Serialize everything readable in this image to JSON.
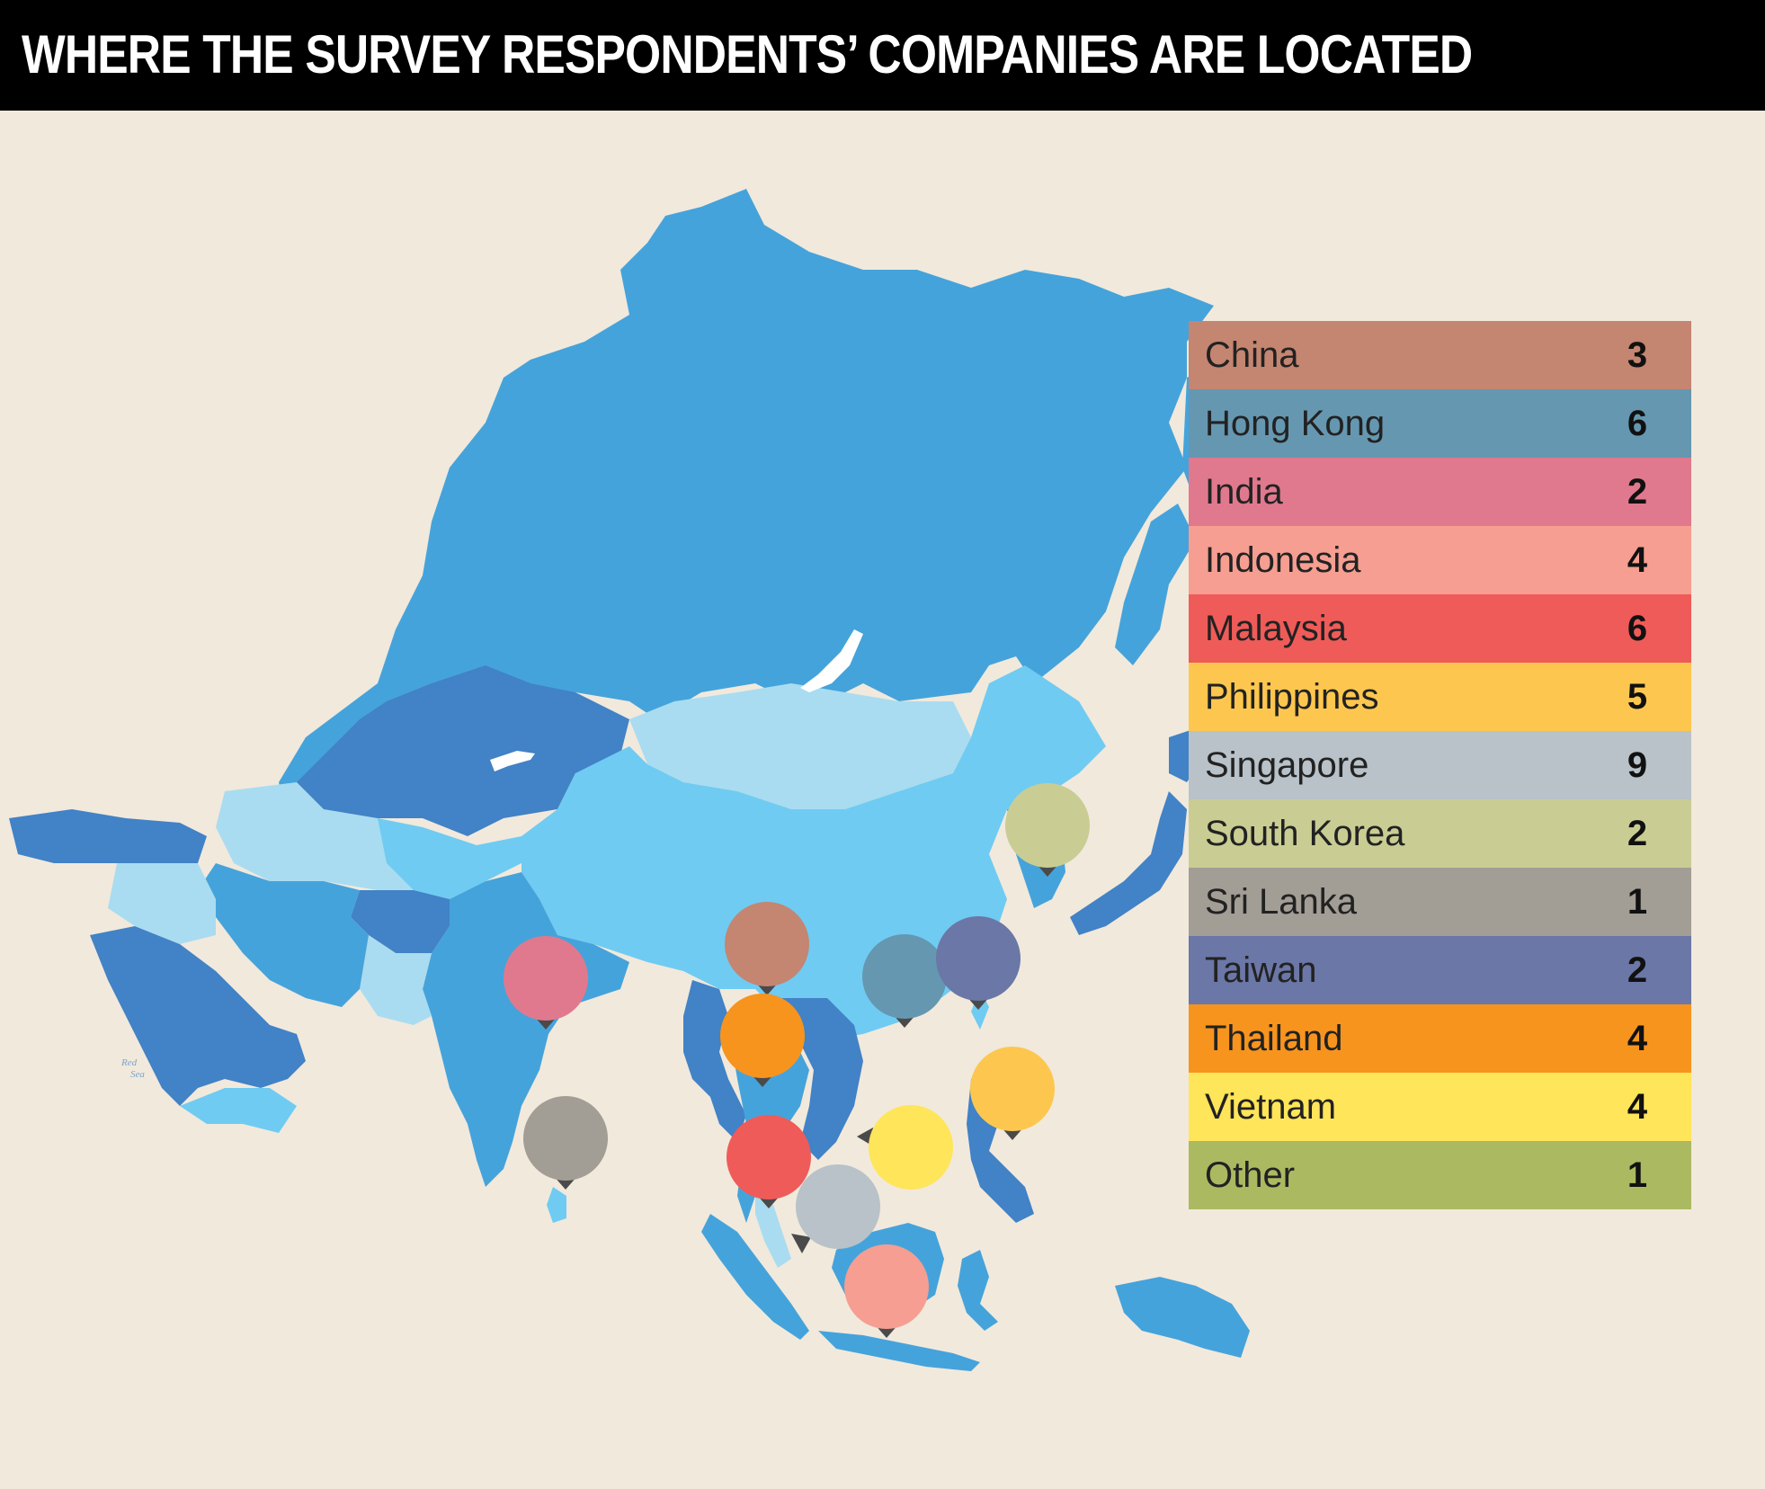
{
  "title": "WHERE THE SURVEY RESPONDENTS’ COMPANIES ARE LOCATED",
  "colors": {
    "background": "#f1e9dc",
    "title_bar": "#000000",
    "land_mid": "#45a3db",
    "land_dark": "#4282c6",
    "land_light": "#6fcbf2",
    "land_pale": "#a9dcf0"
  },
  "map_labels": {
    "red_sea_1": "Red",
    "red_sea_2": "Sea"
  },
  "legend": [
    {
      "country": "China",
      "count": "3",
      "color": "#c48571"
    },
    {
      "country": "Hong Kong",
      "count": "6",
      "color": "#6597b1"
    },
    {
      "country": "India",
      "count": "2",
      "color": "#e0798e"
    },
    {
      "country": "Indonesia",
      "count": "4",
      "color": "#f59e91"
    },
    {
      "country": "Malaysia",
      "count": "6",
      "color": "#ef5b58"
    },
    {
      "country": "Philippines",
      "count": "5",
      "color": "#fdc74f"
    },
    {
      "country": "Singapore",
      "count": "9",
      "color": "#b8c2c8"
    },
    {
      "country": "South Korea",
      "count": "2",
      "color": "#c9cd93"
    },
    {
      "country": "Sri Lanka",
      "count": "1",
      "color": "#a29d95"
    },
    {
      "country": "Taiwan",
      "count": "2",
      "color": "#6b77a7"
    },
    {
      "country": "Thailand",
      "count": "4",
      "color": "#f7941e"
    },
    {
      "country": "Vietnam",
      "count": "4",
      "color": "#ffe559"
    },
    {
      "country": "Other",
      "count": "1",
      "color": "#abb961"
    }
  ],
  "markers": [
    {
      "country": "China",
      "color": "#c48571"
    },
    {
      "country": "Hong Kong",
      "color": "#6597b1"
    },
    {
      "country": "India",
      "color": "#e0798e"
    },
    {
      "country": "Indonesia",
      "color": "#f59e91"
    },
    {
      "country": "Malaysia",
      "color": "#ef5b58"
    },
    {
      "country": "Philippines",
      "color": "#fdc74f"
    },
    {
      "country": "Singapore",
      "color": "#b8c2c8"
    },
    {
      "country": "South Korea",
      "color": "#c9cd93"
    },
    {
      "country": "Sri Lanka",
      "color": "#a29d95"
    },
    {
      "country": "Taiwan",
      "color": "#6b77a7"
    },
    {
      "country": "Thailand",
      "color": "#f7941e"
    },
    {
      "country": "Vietnam",
      "color": "#ffe559"
    }
  ]
}
